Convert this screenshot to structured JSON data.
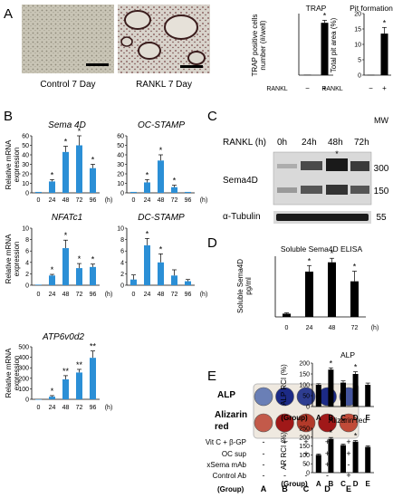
{
  "panels": {
    "A": "A",
    "B": "B",
    "C": "C",
    "D": "D",
    "E": "E"
  },
  "images": {
    "control_caption": "Control 7 Day",
    "rankl_caption": "RANKL 7 Day"
  },
  "blot": {
    "header": "RANKL (h)",
    "lanes": [
      "0h",
      "24h",
      "48h",
      "72h"
    ],
    "mw_label": "MW",
    "mw_values": [
      "300",
      "150",
      "55"
    ],
    "band1": "Sema4D",
    "band2": "α-Tubulin",
    "star": "*"
  },
  "plate": {
    "row1": "ALP",
    "row2": "Alizarin red",
    "conds": [
      "Vit C + β-GP",
      "OC sup",
      "xSema mAb",
      "Control Ab"
    ],
    "group_label": "(Group)",
    "signs": [
      [
        "-",
        "+",
        "+",
        "+",
        "+"
      ],
      [
        "-",
        "-",
        "+",
        "+",
        "+"
      ],
      [
        "-",
        "-",
        "-",
        "+",
        "-"
      ],
      [
        "-",
        "-",
        "-",
        "-",
        "+"
      ]
    ],
    "groups": [
      "A",
      "B",
      "C",
      "D",
      "E"
    ],
    "well_colors": {
      "alp": [
        "#6a7fb6",
        "#1c2a86",
        "#2e3d90",
        "#1c2a86",
        "#44559e"
      ],
      "alizarin": [
        "#c35a4a",
        "#a01818",
        "#b23a2a",
        "#a01818",
        "#c04a38"
      ]
    }
  },
  "chart_data": [
    {
      "id": "trap",
      "type": "bar",
      "title": "TRAP",
      "ylabel": "TRAP positive cells number (#/well)",
      "categories": [
        "−",
        "+"
      ],
      "row_label": "RANKL",
      "values": [
        2,
        255
      ],
      "errors": [
        0,
        12
      ],
      "stars": [
        "",
        "*"
      ],
      "ylim": [
        0,
        300
      ],
      "ticks": []
    },
    {
      "id": "pit",
      "type": "bar",
      "title": "Pit formation",
      "ylabel": "Total pit area (%)",
      "categories": [
        "−",
        "+"
      ],
      "row_label": "RANKL",
      "values": [
        0.1,
        13.5
      ],
      "errors": [
        0,
        2
      ],
      "stars": [
        "",
        "*"
      ],
      "ylim": [
        0,
        20
      ],
      "ticks": [
        0,
        5,
        10,
        15,
        20
      ]
    },
    {
      "id": "sema",
      "type": "bar",
      "title": "Sema 4D",
      "ylabel": "Relative mRNA expression",
      "categories": [
        "0",
        "24",
        "48",
        "72",
        "96"
      ],
      "unit": "(h)",
      "values": [
        1,
        12,
        43,
        50,
        26
      ],
      "errors": [
        0,
        2,
        6,
        10,
        4
      ],
      "stars": [
        "",
        "*",
        "*",
        "*",
        "*"
      ],
      "ylim": [
        0,
        60
      ],
      "ticks": [
        0,
        10,
        20,
        30,
        40,
        50,
        60
      ]
    },
    {
      "id": "ocstamp",
      "type": "bar",
      "title": "OC-STAMP",
      "ylabel": "",
      "categories": [
        "0",
        "24",
        "48",
        "72",
        "96"
      ],
      "unit": "(h)",
      "values": [
        1,
        11,
        34,
        6,
        1
      ],
      "errors": [
        0,
        3,
        6,
        2,
        0
      ],
      "stars": [
        "",
        "*",
        "*",
        "*",
        ""
      ],
      "ylim": [
        0,
        60
      ],
      "ticks": [
        0,
        10,
        20,
        30,
        40,
        50,
        60
      ]
    },
    {
      "id": "nfatc1",
      "type": "bar",
      "title": "NFATc1",
      "ylabel": "Relative mRNA expression",
      "categories": [
        "0",
        "24",
        "48",
        "72",
        "96"
      ],
      "unit": "(h)",
      "values": [
        0.1,
        1.7,
        6.5,
        3.0,
        3.2
      ],
      "errors": [
        0,
        0.2,
        1.4,
        0.8,
        0.5
      ],
      "stars": [
        "",
        "*",
        "*",
        "*",
        "*"
      ],
      "ylim": [
        0,
        10
      ],
      "ticks": [
        0,
        2,
        4,
        6,
        8,
        10
      ]
    },
    {
      "id": "dcstamp",
      "type": "bar",
      "title": "DC-STAMP",
      "ylabel": "",
      "categories": [
        "0",
        "24",
        "48",
        "72",
        "96"
      ],
      "unit": "(h)",
      "values": [
        1,
        7,
        4,
        1.7,
        0.7
      ],
      "errors": [
        0.8,
        1.2,
        1.5,
        1.0,
        0.3
      ],
      "stars": [
        "",
        "*",
        "*",
        "",
        ""
      ],
      "ylim": [
        0,
        10
      ],
      "ticks": [
        0,
        2,
        4,
        6,
        8,
        10
      ]
    },
    {
      "id": "atp",
      "type": "bar",
      "title": "ATP6v0d2",
      "ylabel": "Relative mRNA expression",
      "categories": [
        "0",
        "24",
        "48",
        "72",
        "96"
      ],
      "unit": "(h)",
      "values": [
        0,
        25,
        190,
        255,
        395
      ],
      "errors": [
        0,
        10,
        35,
        30,
        65
      ],
      "stars": [
        "",
        "*",
        "**",
        "**",
        "**"
      ],
      "ylim": [
        0,
        500
      ],
      "ticks": [
        0,
        100,
        200,
        300,
        400,
        500
      ]
    },
    {
      "id": "elisa",
      "type": "bar",
      "title": "Soluble Sema4D ELISA",
      "ylabel": "Soluble Sema4D pg/ml",
      "categories": [
        "0",
        "24",
        "48",
        "72"
      ],
      "unit": "(h)",
      "values": [
        8,
        112,
        135,
        88
      ],
      "errors": [
        2,
        15,
        10,
        25
      ],
      "stars": [
        "",
        "*",
        "*",
        "*"
      ],
      "ylim": [
        0,
        150
      ],
      "ticks": []
    },
    {
      "id": "alp",
      "type": "bar",
      "title": "ALP",
      "ylabel": "ALP RCI (%)",
      "categories": [
        "A",
        "B",
        "C",
        "D",
        "E"
      ],
      "unit": "(Group)",
      "values": [
        100,
        170,
        110,
        150,
        100
      ],
      "errors": [
        5,
        8,
        8,
        10,
        8
      ],
      "stars": [
        "",
        "*",
        "",
        "*",
        ""
      ],
      "ylim": [
        0,
        200
      ],
      "ticks": [
        0,
        50,
        100,
        150,
        200
      ]
    },
    {
      "id": "ar",
      "type": "bar",
      "title": "Alizarin red",
      "ylabel": "AR RCI (%)",
      "categories": [
        "A",
        "B",
        "C",
        "D",
        "E"
      ],
      "unit": "(Group)",
      "values": [
        100,
        190,
        155,
        175,
        145
      ],
      "errors": [
        5,
        8,
        6,
        6,
        6
      ],
      "stars": [
        "",
        "*",
        "",
        "*",
        ""
      ],
      "ylim": [
        0,
        250
      ],
      "ticks": [
        0,
        50,
        100,
        150,
        200,
        250
      ]
    }
  ]
}
